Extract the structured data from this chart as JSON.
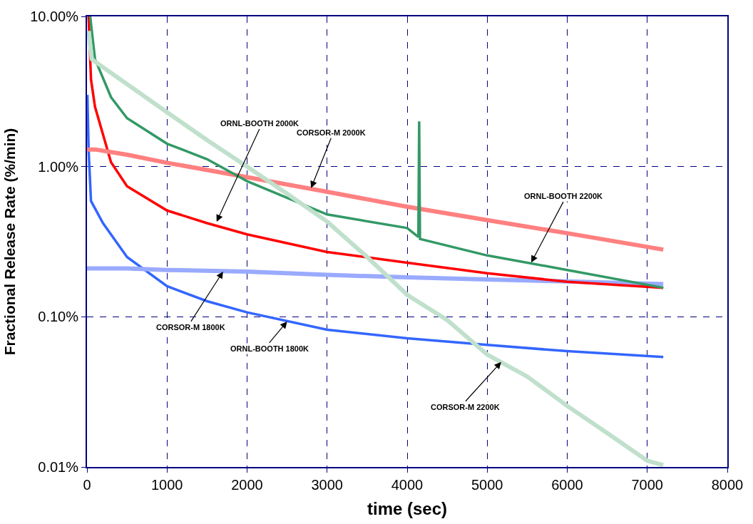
{
  "chart_data": {
    "type": "line",
    "xlabel": "time (sec)",
    "ylabel": "Fractional Release Rate (%/min)",
    "xlim": [
      0,
      8000
    ],
    "xticks": [
      0,
      1000,
      2000,
      3000,
      4000,
      5000,
      6000,
      7000,
      8000
    ],
    "ylim": [
      0.01,
      10
    ],
    "log": "y",
    "yticks": [
      {
        "value": 0.01,
        "label": "0.01%"
      },
      {
        "value": 0.1,
        "label": "0.10%"
      },
      {
        "value": 1,
        "label": "1.00%"
      },
      {
        "value": 10,
        "label": "10.00%"
      }
    ],
    "grid": true,
    "marker": "none",
    "line_style": "solid",
    "series": [
      {
        "color": "#3366ff",
        "x": [
          5,
          20,
          50,
          200,
          500,
          1000,
          1500,
          2000,
          3000,
          4000,
          5000,
          6000,
          7200
        ],
        "values": [
          3.0,
          1.3,
          0.59,
          0.42,
          0.25,
          0.16,
          0.127,
          0.107,
          0.082,
          0.072,
          0.065,
          0.059,
          0.054
        ]
      },
      {
        "color": "#99aaff",
        "x": [
          0,
          500,
          1000,
          2000,
          3000,
          4000,
          5000,
          6000,
          7200
        ],
        "values": [
          0.21,
          0.21,
          0.205,
          0.2,
          0.19,
          0.183,
          0.177,
          0.172,
          0.165
        ]
      },
      {
        "color": "#ff0000",
        "x": [
          20,
          50,
          100,
          300,
          500,
          1000,
          1500,
          2000,
          3000,
          4000,
          5000,
          6000,
          7200
        ],
        "values": [
          10,
          3.8,
          2.5,
          1.07,
          0.74,
          0.51,
          0.42,
          0.354,
          0.27,
          0.229,
          0.195,
          0.171,
          0.156
        ]
      },
      {
        "color": "#ff8080",
        "x": [
          0,
          100,
          500,
          1000,
          2000,
          3000,
          4000,
          5000,
          6000,
          7200
        ],
        "values": [
          1.3,
          1.3,
          1.2,
          1.06,
          0.85,
          0.68,
          0.54,
          0.44,
          0.36,
          0.28
        ]
      },
      {
        "color": "#339966",
        "x": [
          40,
          100,
          300,
          500,
          1000,
          1500,
          2000,
          3000,
          4000,
          4140,
          4150,
          4160,
          5000,
          6000,
          7200
        ],
        "values": [
          10,
          5.2,
          2.9,
          2.1,
          1.42,
          1.12,
          0.8,
          0.48,
          0.39,
          0.34,
          2.0,
          0.33,
          0.256,
          0.205,
          0.156
        ]
      },
      {
        "color": "#c0e0cc",
        "x": [
          20,
          60,
          100,
          1000,
          1500,
          2000,
          2500,
          3000,
          3500,
          4000,
          4500,
          5000,
          5500,
          6000,
          6500,
          7000,
          7200
        ],
        "values": [
          8.0,
          5.2,
          5.0,
          2.3,
          1.5,
          1.0,
          0.66,
          0.43,
          0.25,
          0.14,
          0.095,
          0.056,
          0.04,
          0.0255,
          0.0168,
          0.011,
          0.0103
        ]
      }
    ],
    "annotations": [
      {
        "text": "ORNL-BOOTH 2000K",
        "x": 1620,
        "y": 0.43
      },
      {
        "text": "CORSOR-M 2000K",
        "x": 2800,
        "y": 0.72
      },
      {
        "text": "ORNL-BOOTH 2200K",
        "x": 5550,
        "y": 0.23
      },
      {
        "text": "CORSOR-M 1800K",
        "x": 1700,
        "y": 0.2
      },
      {
        "text": "ORNL-BOOTH 1800K",
        "x": 2500,
        "y": 0.093
      },
      {
        "text": "CORSOR-M 2200K",
        "x": 5175,
        "y": 0.05
      }
    ]
  }
}
